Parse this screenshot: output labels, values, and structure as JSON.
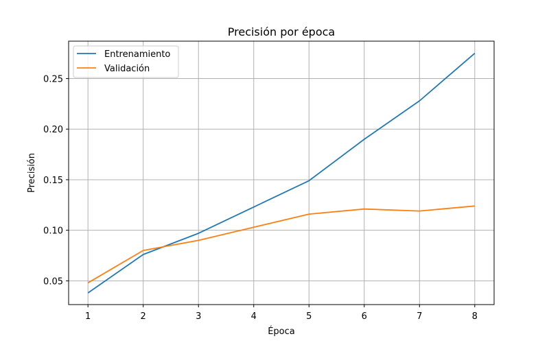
{
  "chart_data": {
    "type": "line",
    "title": "Precisión por época",
    "xlabel": "Época",
    "ylabel": "Precisión",
    "x": [
      1,
      2,
      3,
      4,
      5,
      6,
      7,
      8
    ],
    "xticks": [
      "1",
      "2",
      "3",
      "4",
      "5",
      "6",
      "7",
      "8"
    ],
    "yticks": [
      0.05,
      0.1,
      0.15,
      0.2,
      0.25
    ],
    "ytick_labels": [
      "0.05",
      "0.10",
      "0.15",
      "0.20",
      "0.25"
    ],
    "xlim": [
      0.65,
      8.35
    ],
    "ylim": [
      0.0265,
      0.287
    ],
    "grid": true,
    "legend_position": "top-left",
    "series": [
      {
        "name": "Entrenamiento",
        "color": "#1f77b4",
        "values": [
          0.038,
          0.076,
          0.097,
          0.123,
          0.149,
          0.19,
          0.228,
          0.275
        ]
      },
      {
        "name": "Validación",
        "color": "#ff7f0e",
        "values": [
          0.048,
          0.08,
          0.09,
          0.103,
          0.116,
          0.121,
          0.119,
          0.124
        ]
      }
    ]
  }
}
